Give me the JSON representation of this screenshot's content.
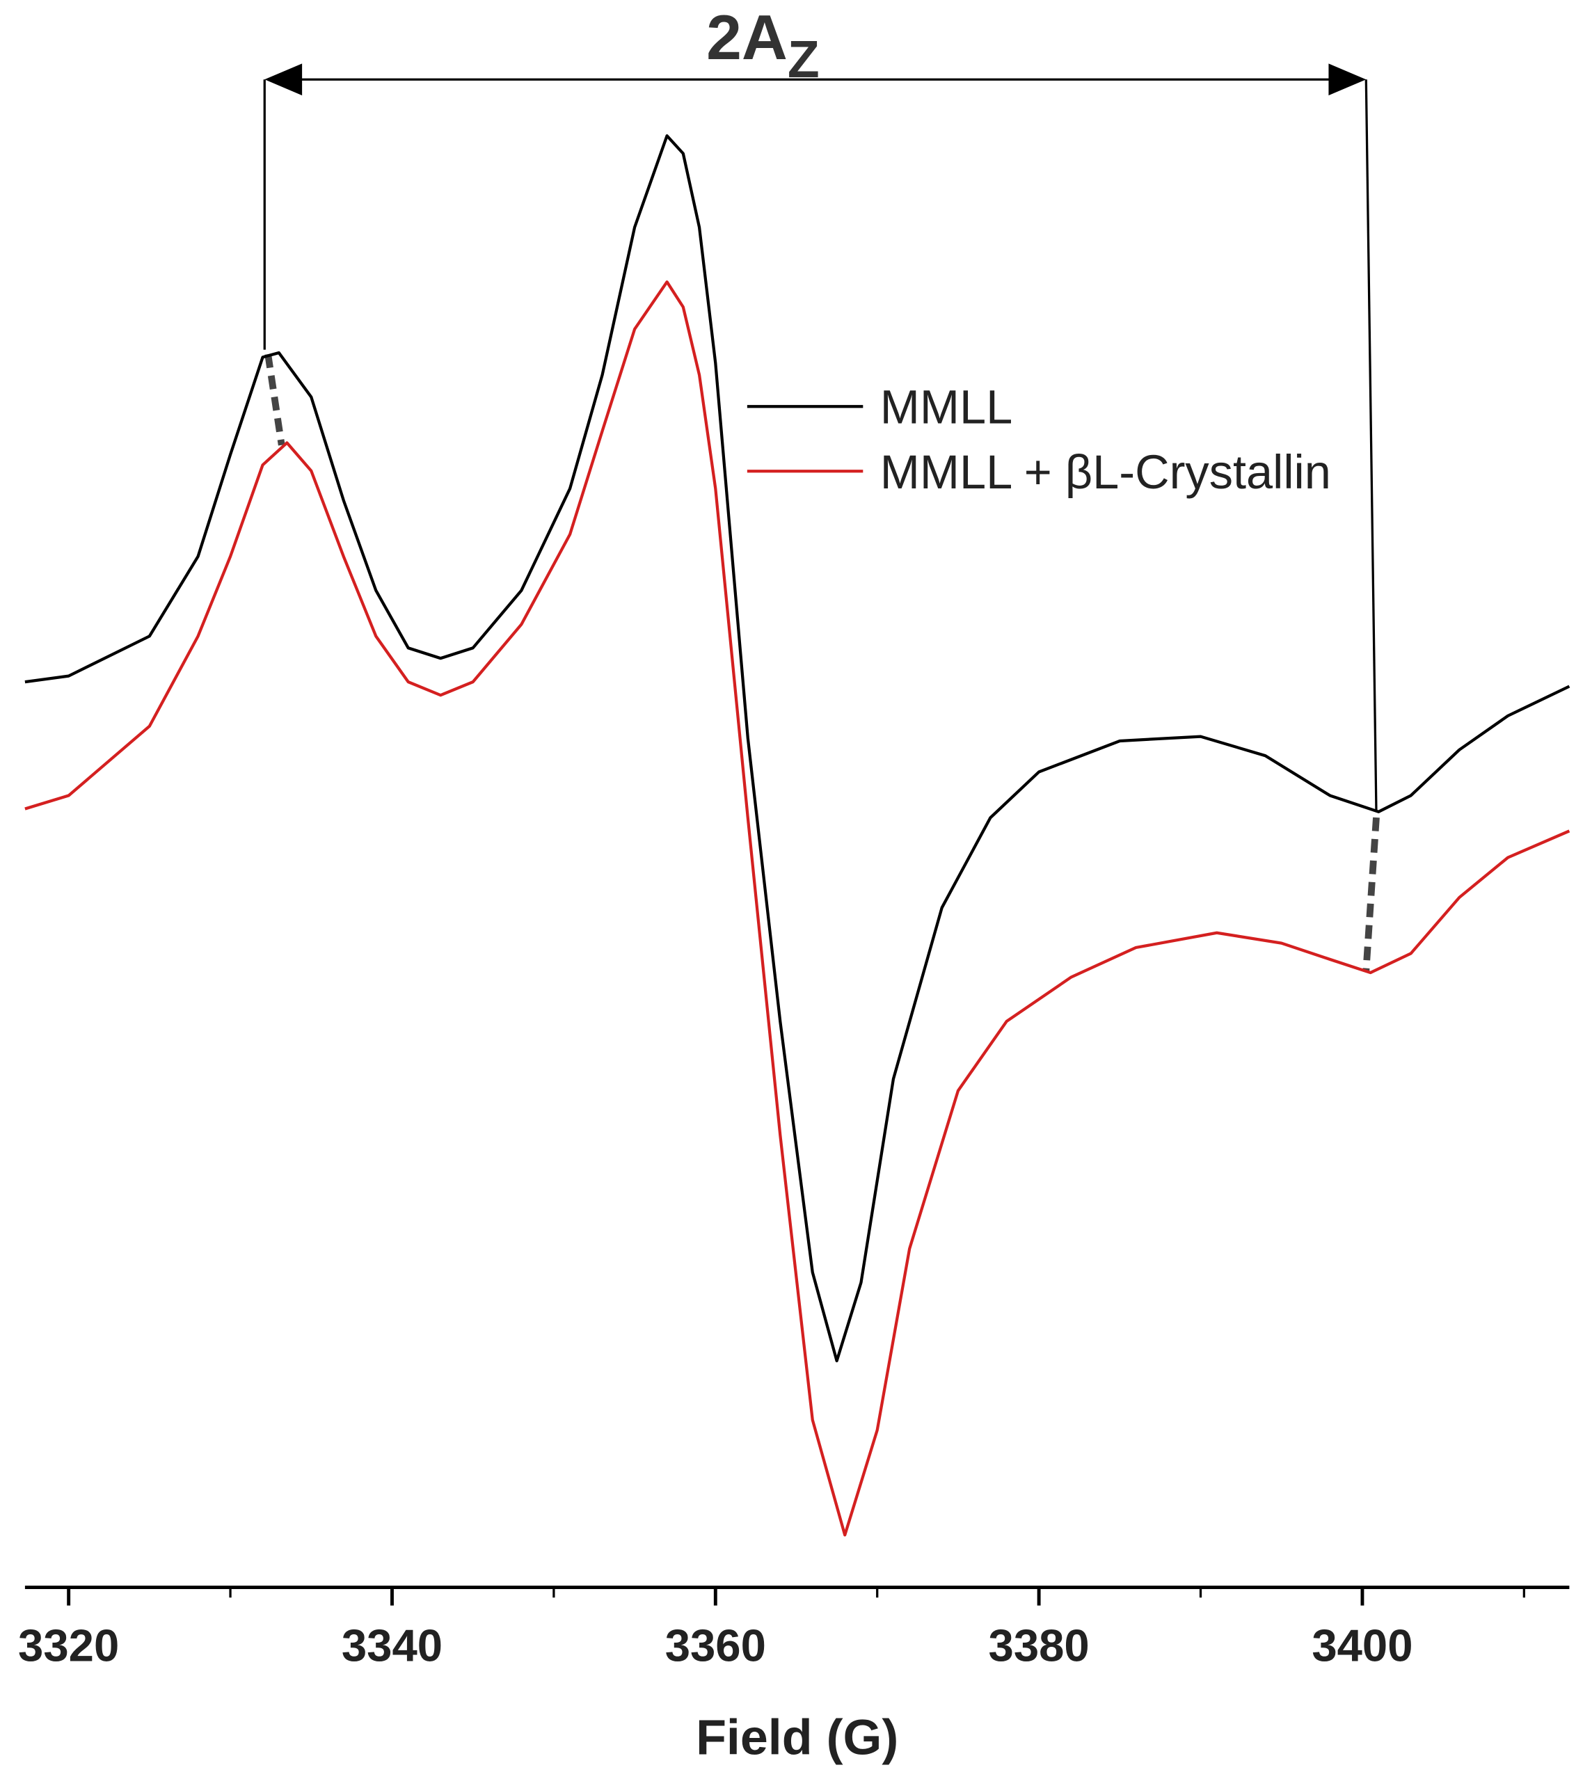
{
  "chart_data": {
    "type": "line",
    "x_label": "Field (G)",
    "xlim": [
      3317.3,
      3412.8
    ],
    "ylim": [
      0,
      107.7
    ],
    "xticks": [
      3320,
      3340,
      3360,
      3380,
      3400
    ],
    "xminor_ticks": [
      3330,
      3350,
      3370,
      3390,
      3410
    ],
    "annotation": {
      "text": "2A",
      "subscript": "Z"
    },
    "legend": "upper right",
    "series": [
      {
        "name": "MMLL",
        "color": "#000000",
        "x": [
          3317.3,
          3320,
          3325,
          3328,
          3330,
          3332,
          3333,
          3335,
          3337,
          3339,
          3341,
          3343,
          3345,
          3348,
          3351,
          3353,
          3355,
          3357,
          3358,
          3359,
          3360,
          3362,
          3364,
          3366,
          3367.5,
          3369,
          3371,
          3374,
          3377,
          3380,
          3385,
          3390,
          3394,
          3398,
          3401,
          3403,
          3406,
          3409,
          3412.8
        ],
        "values": [
          61.5,
          61.9,
          64.6,
          70,
          76.9,
          83.5,
          83.8,
          80.8,
          73.8,
          67.7,
          63.8,
          63.1,
          63.8,
          67.7,
          74.6,
          82.3,
          92.3,
          98.5,
          97.3,
          92.3,
          83.1,
          57.7,
          38.5,
          21.5,
          15.5,
          20.8,
          34.6,
          46.2,
          52.3,
          55.4,
          57.5,
          57.8,
          56.5,
          53.8,
          52.7,
          53.8,
          56.9,
          59.2,
          61.2
        ]
      },
      {
        "name": "MMLL + βL-Crystallin",
        "color": "#d42020",
        "x": [
          3317.3,
          3320,
          3325,
          3328,
          3330,
          3332,
          3333.5,
          3335,
          3337,
          3339,
          3341,
          3343,
          3345,
          3348,
          3351,
          3353,
          3355,
          3357,
          3358,
          3359,
          3360,
          3362,
          3364,
          3366,
          3368,
          3370,
          3372,
          3375,
          3378,
          3382,
          3386,
          3391,
          3395,
          3398,
          3400.5,
          3403,
          3406,
          3409,
          3412.8
        ],
        "values": [
          52.9,
          53.8,
          58.5,
          64.6,
          70,
          76.2,
          77.7,
          75.8,
          70,
          64.6,
          61.5,
          60.6,
          61.5,
          65.4,
          71.5,
          78.5,
          85.4,
          88.6,
          86.9,
          82.3,
          74.6,
          52.3,
          30.8,
          11.5,
          3.7,
          10.8,
          23.1,
          33.8,
          38.5,
          41.5,
          43.5,
          44.5,
          43.8,
          42.7,
          41.8,
          43.1,
          46.9,
          49.6,
          51.4
        ]
      }
    ]
  }
}
